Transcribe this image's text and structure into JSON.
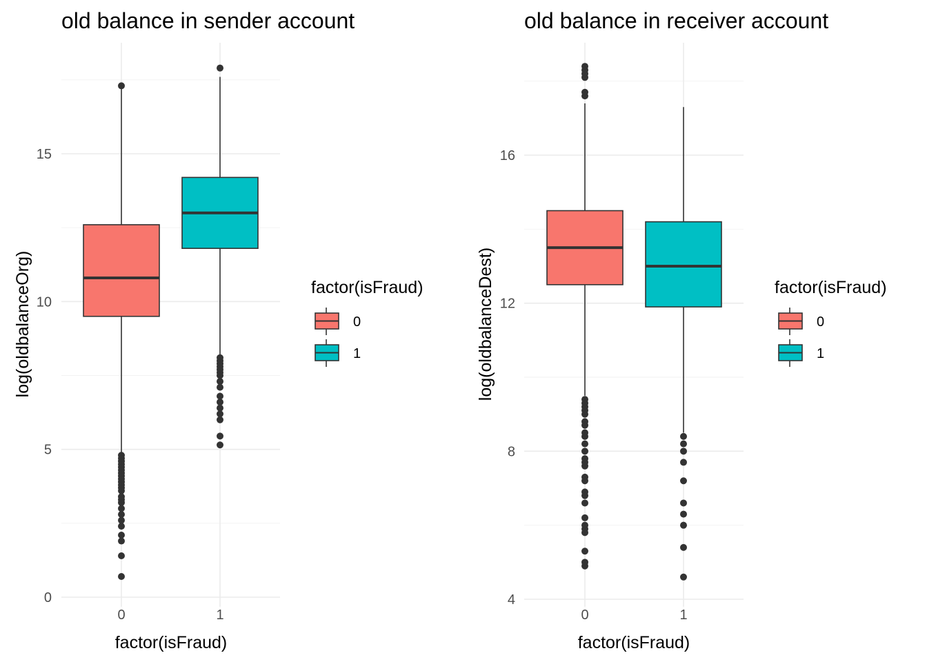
{
  "chart_data": [
    {
      "type": "boxplot",
      "title": "old balance in sender account",
      "xlabel": "factor(isFraud)",
      "ylabel": "log(oldbalanceOrg)",
      "ylim": [
        0,
        17.9
      ],
      "yticks": [
        0,
        5,
        10,
        15
      ],
      "categories": [
        "0",
        "1"
      ],
      "colors": [
        "#F8766D",
        "#00BFC4"
      ],
      "grid": true,
      "legend": {
        "title": "factor(isFraud)",
        "labels": [
          "0",
          "1"
        ],
        "position": "right"
      },
      "boxes": [
        {
          "category": "0",
          "lower_whisker": 4.9,
          "q1": 9.5,
          "median": 10.8,
          "q3": 12.6,
          "upper_whisker": 17.3,
          "outliers": [
            0.7,
            1.4,
            1.9,
            2.1,
            2.4,
            2.6,
            2.8,
            3.0,
            3.2,
            3.3,
            3.4,
            3.6,
            3.7,
            3.8,
            3.9,
            4.0,
            4.1,
            4.2,
            4.3,
            4.4,
            4.5,
            4.6,
            4.7,
            4.8,
            17.3
          ]
        },
        {
          "category": "1",
          "lower_whisker": 8.2,
          "q1": 11.8,
          "median": 13.0,
          "q3": 14.2,
          "upper_whisker": 17.6,
          "outliers": [
            5.15,
            5.45,
            6.0,
            6.2,
            6.4,
            6.6,
            6.8,
            7.1,
            7.3,
            7.5,
            7.6,
            7.7,
            7.8,
            7.9,
            8.0,
            8.1,
            17.9
          ]
        }
      ]
    },
    {
      "type": "boxplot",
      "title": "old balance in receiver account",
      "xlabel": "factor(isFraud)",
      "ylabel": "log(oldbalanceDest)",
      "ylim": [
        4,
        18.4
      ],
      "yticks": [
        4,
        8,
        12,
        16
      ],
      "categories": [
        "0",
        "1"
      ],
      "colors": [
        "#F8766D",
        "#00BFC4"
      ],
      "grid": true,
      "legend": {
        "title": "factor(isFraud)",
        "labels": [
          "0",
          "1"
        ],
        "position": "right"
      },
      "boxes": [
        {
          "category": "0",
          "lower_whisker": 9.5,
          "q1": 12.5,
          "median": 13.5,
          "q3": 14.5,
          "upper_whisker": 17.4,
          "outliers": [
            4.9,
            5.0,
            5.3,
            5.8,
            5.9,
            6.0,
            6.2,
            6.6,
            6.8,
            6.9,
            7.2,
            7.3,
            7.6,
            7.7,
            7.8,
            8.0,
            8.2,
            8.4,
            8.5,
            8.7,
            8.8,
            9.0,
            9.1,
            9.2,
            9.3,
            9.4,
            17.6,
            17.7,
            18.1,
            18.2,
            18.3,
            18.4
          ]
        },
        {
          "category": "1",
          "lower_whisker": 8.5,
          "q1": 11.9,
          "median": 13.0,
          "q3": 14.2,
          "upper_whisker": 17.3,
          "outliers": [
            4.6,
            5.4,
            6.0,
            6.3,
            6.6,
            7.2,
            7.7,
            8.0,
            8.2,
            8.4
          ]
        }
      ]
    }
  ]
}
